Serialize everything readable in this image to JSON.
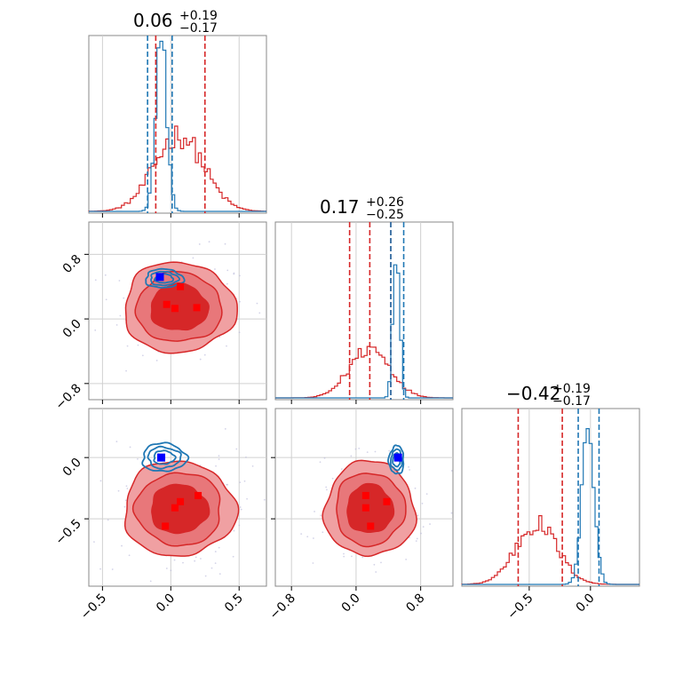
{
  "chart_data": {
    "type": "corner",
    "colors": {
      "red": "#d62728",
      "blue": "#1f77b4",
      "red_fill_dark": "#d62728",
      "red_fill_light": "#f0a0a2",
      "marker_red": "#ff0000",
      "marker_blue": "#0000ff"
    },
    "titles": [
      {
        "main": "0.06",
        "plus": "+0.19",
        "minus": "−0.17"
      },
      {
        "main": "0.17",
        "plus": "+0.26",
        "minus": "−0.25"
      },
      {
        "main": "−0.42",
        "plus": "+0.19",
        "minus": "−0.17"
      }
    ],
    "params": [
      {
        "range": [
          -0.6,
          0.7
        ],
        "ticks": [
          -0.5,
          0.0,
          0.5
        ],
        "tick_labels": [
          "−0.5",
          "0.0",
          "0.5"
        ]
      },
      {
        "range": [
          -1.0,
          1.2
        ],
        "ticks": [
          -0.8,
          0.0,
          0.8
        ],
        "tick_labels": [
          "−0.8",
          "0.0",
          "0.8"
        ]
      },
      {
        "range": [
          -1.05,
          0.4
        ],
        "ticks": [
          -0.5,
          0.0
        ],
        "tick_labels": [
          "−0.5",
          "0.0"
        ]
      }
    ],
    "histograms": [
      {
        "red_quantiles": [
          -0.11,
          0.06,
          0.25
        ],
        "blue_quantiles": [
          -0.17,
          -0.07,
          0.01
        ],
        "red_center": 0.06,
        "red_sigma": 0.18,
        "blue_center": -0.07,
        "blue_sigma": 0.04
      },
      {
        "red_quantiles": [
          -0.08,
          0.17,
          0.43
        ],
        "blue_quantiles": [
          0.43,
          0.48,
          0.59
        ],
        "red_center": 0.17,
        "red_sigma": 0.25,
        "blue_center": 0.5,
        "blue_sigma": 0.04
      },
      {
        "red_quantiles": [
          -0.59,
          -0.42,
          -0.23
        ],
        "blue_quantiles": [
          -0.1,
          -0.02,
          0.07
        ],
        "red_center": -0.44,
        "red_sigma": 0.17,
        "blue_center": -0.02,
        "blue_sigma": 0.05
      }
    ],
    "scatter_panels": [
      {
        "x_param": 0,
        "y_param": 1,
        "red_center": [
          0.06,
          0.14
        ],
        "red_sigma": [
          0.19,
          0.26
        ],
        "blue_center": [
          -0.05,
          0.5
        ],
        "blue_sigma": [
          0.06,
          0.05
        ],
        "red_markers": [
          [
            -0.03,
            0.18
          ],
          [
            0.03,
            0.13
          ],
          [
            0.19,
            0.14
          ],
          [
            0.07,
            0.4
          ]
        ],
        "blue_markers": [
          [
            -0.08,
            0.52
          ]
        ]
      },
      {
        "x_param": 0,
        "y_param": 2,
        "red_center": [
          0.06,
          -0.42
        ],
        "red_sigma": [
          0.19,
          0.18
        ],
        "blue_center": [
          -0.05,
          0.0
        ],
        "blue_sigma": [
          0.07,
          0.05
        ],
        "red_markers": [
          [
            0.2,
            -0.31
          ],
          [
            0.07,
            -0.36
          ],
          [
            0.03,
            -0.41
          ],
          [
            -0.04,
            -0.56
          ]
        ],
        "blue_markers": [
          [
            -0.07,
            0.0
          ]
        ]
      },
      {
        "x_param": 1,
        "y_param": 2,
        "red_center": [
          0.17,
          -0.42
        ],
        "red_sigma": [
          0.26,
          0.18
        ],
        "blue_center": [
          0.5,
          -0.02
        ],
        "blue_sigma": [
          0.04,
          0.05
        ],
        "red_markers": [
          [
            0.12,
            -0.31
          ],
          [
            0.38,
            -0.36
          ],
          [
            0.12,
            -0.41
          ],
          [
            0.18,
            -0.56
          ]
        ],
        "blue_markers": [
          [
            0.52,
            0.0
          ]
        ]
      }
    ]
  }
}
